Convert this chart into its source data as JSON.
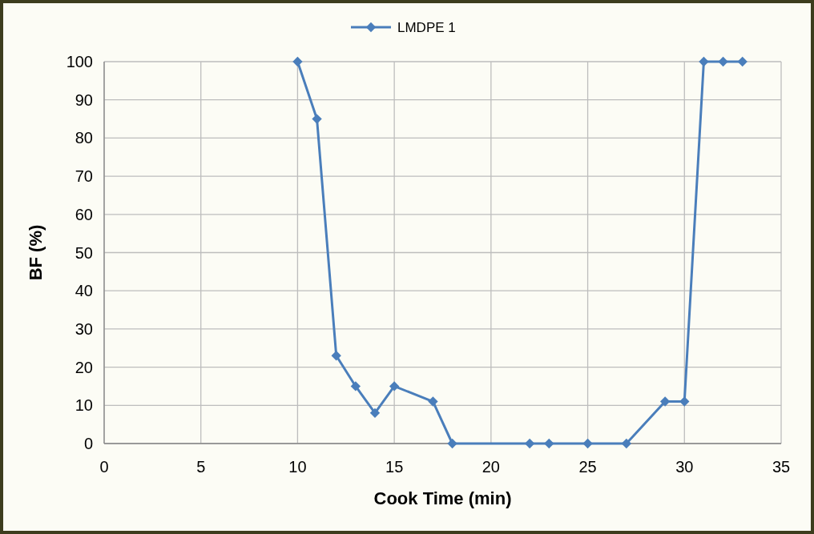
{
  "chart_data": {
    "type": "line",
    "xlabel": "Cook Time (min)",
    "ylabel": "BF (%)",
    "series": [
      {
        "name": "LMDPE 1",
        "color": "#4a7ebb",
        "x": [
          10,
          11,
          12,
          13,
          14,
          15,
          17,
          18,
          22,
          23,
          25,
          27,
          29,
          30,
          31,
          32,
          33
        ],
        "values": [
          100,
          85,
          23,
          15,
          8,
          15,
          11,
          0,
          0,
          0,
          0,
          0,
          11,
          11,
          100,
          100,
          100
        ]
      }
    ],
    "xlim": [
      0,
      35
    ],
    "xticks": [
      0,
      5,
      10,
      15,
      20,
      25,
      30,
      35
    ],
    "ylim": [
      0,
      100
    ],
    "yticks": [
      0,
      10,
      20,
      30,
      40,
      50,
      60,
      70,
      80,
      90,
      100
    ],
    "grid": true,
    "legend": "top",
    "marker": "diamond",
    "line_style": "solid"
  }
}
